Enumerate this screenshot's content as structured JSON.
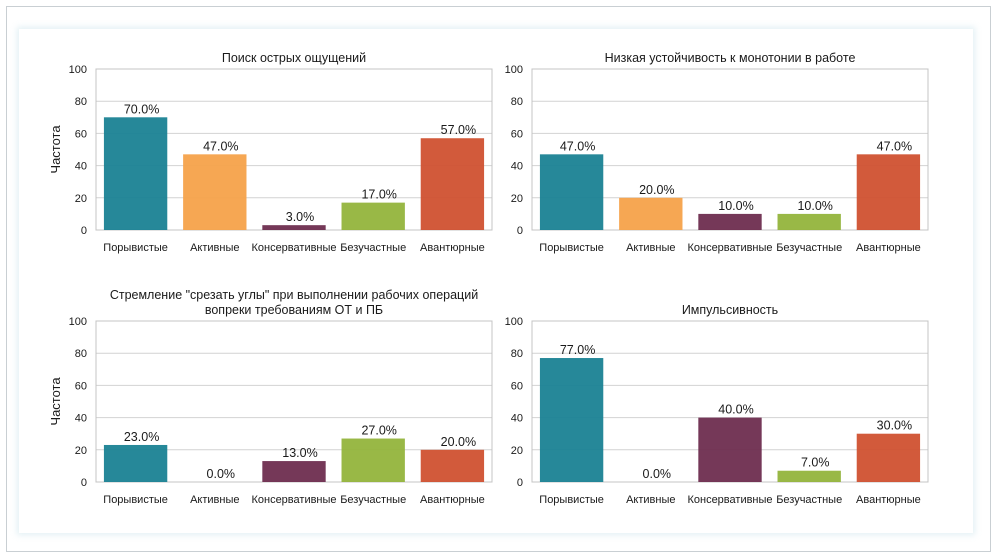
{
  "chart_data": [
    {
      "type": "bar",
      "title_lines": [
        "Поиск острых ощущений"
      ],
      "ylabel": "Частота",
      "ylim": [
        0,
        100
      ],
      "yticks": [
        0,
        20,
        40,
        60,
        80,
        100
      ],
      "categories": [
        "Порывистые",
        "Активные",
        "Консервативные",
        "Безучастные",
        "Авантюрные"
      ],
      "values": [
        70.0,
        47.0,
        3.0,
        17.0,
        57.0
      ],
      "value_labels": [
        "70.0%",
        "47.0%",
        "3.0%",
        "17.0%",
        "57.0%"
      ],
      "grid": true
    },
    {
      "type": "bar",
      "title_lines": [
        "Низкая устойчивость к монотонии в работе"
      ],
      "ylabel": "",
      "ylim": [
        0,
        100
      ],
      "yticks": [
        0,
        20,
        40,
        60,
        80,
        100
      ],
      "categories": [
        "Порывистые",
        "Активные",
        "Консервативные",
        "Безучастные",
        "Авантюрные"
      ],
      "values": [
        47.0,
        20.0,
        10.0,
        10.0,
        47.0
      ],
      "value_labels": [
        "47.0%",
        "20.0%",
        "10.0%",
        "10.0%",
        "47.0%"
      ],
      "grid": true
    },
    {
      "type": "bar",
      "title_lines": [
        "Стремление \"срезать углы\" при выполнении рабочих операций",
        "вопреки требованиям ОТ и ПБ"
      ],
      "ylabel": "Частота",
      "ylim": [
        0,
        100
      ],
      "yticks": [
        0,
        20,
        40,
        60,
        80,
        100
      ],
      "categories": [
        "Порывистые",
        "Активные",
        "Консервативные",
        "Безучастные",
        "Авантюрные"
      ],
      "values": [
        23.0,
        0.0,
        13.0,
        27.0,
        20.0
      ],
      "value_labels": [
        "23.0%",
        "0.0%",
        "13.0%",
        "27.0%",
        "20.0%"
      ],
      "grid": true
    },
    {
      "type": "bar",
      "title_lines": [
        "Импульсивность"
      ],
      "ylabel": "",
      "ylim": [
        0,
        100
      ],
      "yticks": [
        0,
        20,
        40,
        60,
        80,
        100
      ],
      "categories": [
        "Порывистые",
        "Активные",
        "Консервативные",
        "Безучастные",
        "Авантюрные"
      ],
      "values": [
        77.0,
        0.0,
        40.0,
        7.0,
        30.0
      ],
      "value_labels": [
        "77.0%",
        "0.0%",
        "40.0%",
        "7.0%",
        "30.0%"
      ],
      "grid": true
    }
  ],
  "colors": [
    "#1a8294",
    "#f5a24a",
    "#6e2d4f",
    "#93b43c",
    "#d05130"
  ]
}
